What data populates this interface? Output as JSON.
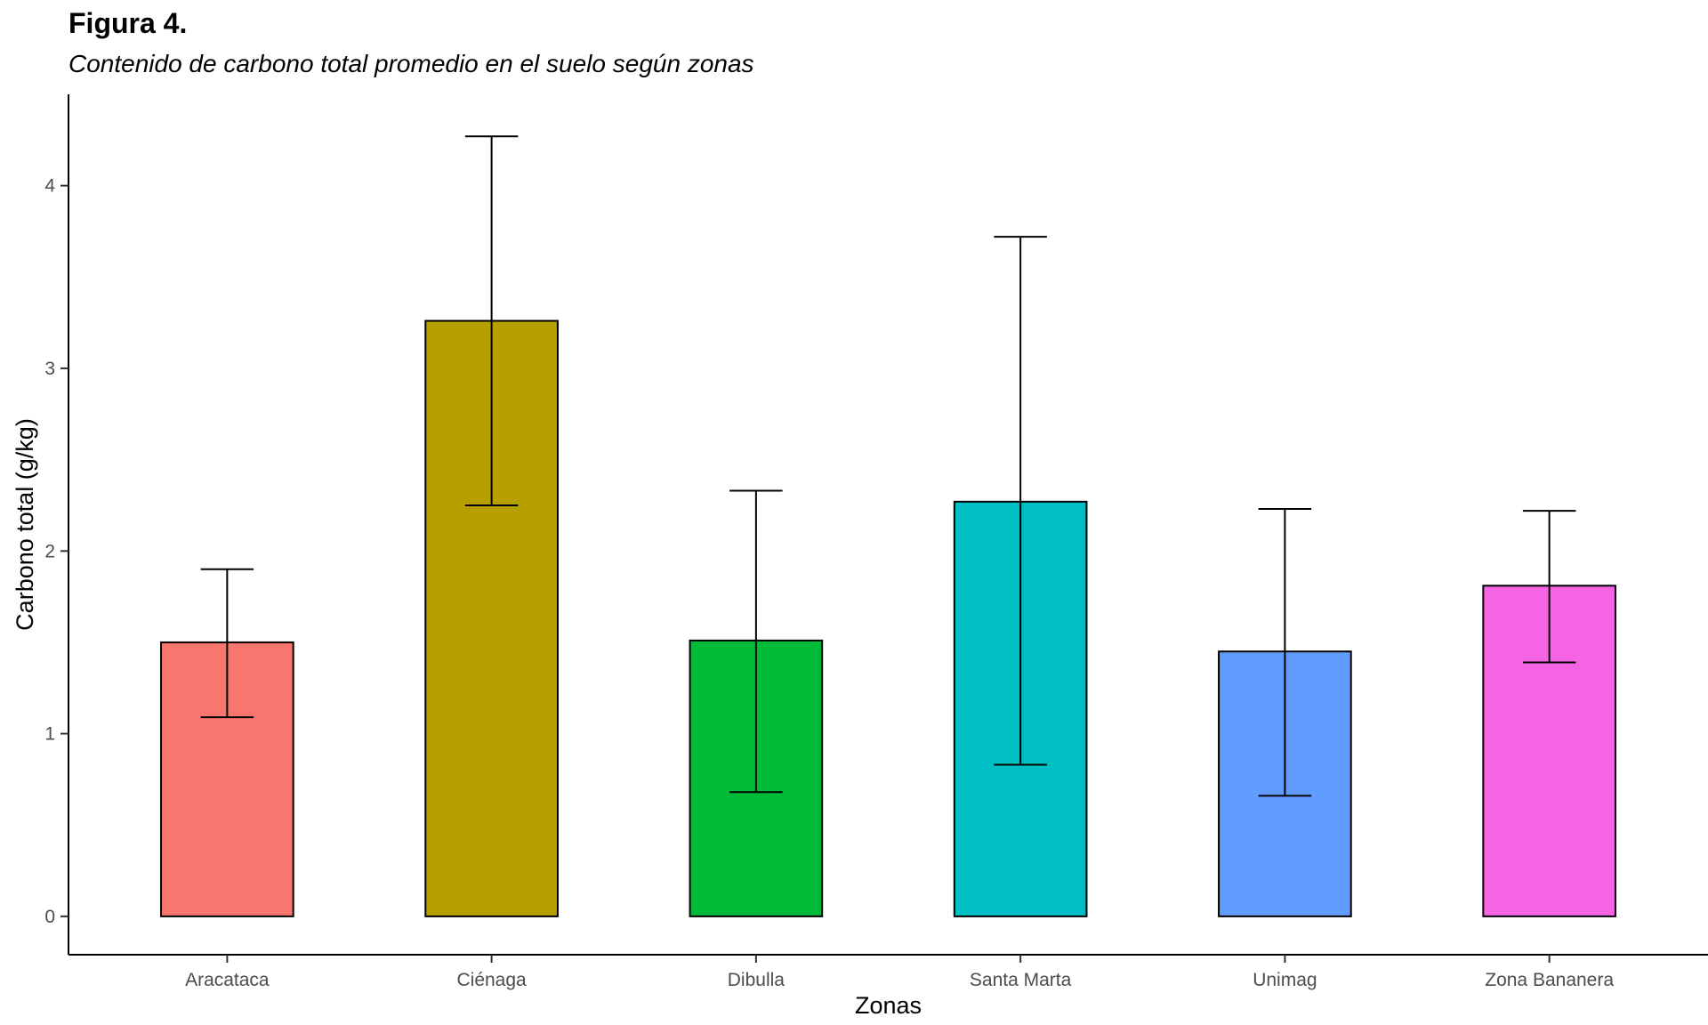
{
  "figure": {
    "label": "Figura 4.",
    "subtitle": "Contenido de carbono total promedio en el suelo según zonas"
  },
  "chart_data": {
    "type": "bar",
    "categories": [
      "Aracataca",
      "Ciénaga",
      "Dibulla",
      "Santa Marta",
      "Unimag",
      "Zona Bananera"
    ],
    "values": [
      1.5,
      3.26,
      1.51,
      2.27,
      1.45,
      1.81
    ],
    "error_low": [
      1.09,
      2.25,
      0.68,
      0.83,
      0.66,
      1.39
    ],
    "error_high": [
      1.9,
      4.27,
      2.33,
      3.72,
      2.23,
      2.22
    ],
    "colors": [
      "#F8766D",
      "#B79F00",
      "#00BA38",
      "#00BFC4",
      "#619CFF",
      "#F564E3"
    ],
    "xlabel": "Zonas",
    "ylabel": "Carbono total (g/kg)",
    "ylim": [
      -0.21,
      4.5
    ],
    "yticks": [
      0,
      1,
      2,
      3,
      4
    ],
    "ytick_labels": [
      "0",
      "1",
      "2",
      "3",
      "4"
    ],
    "grid": false,
    "legend": "none"
  }
}
